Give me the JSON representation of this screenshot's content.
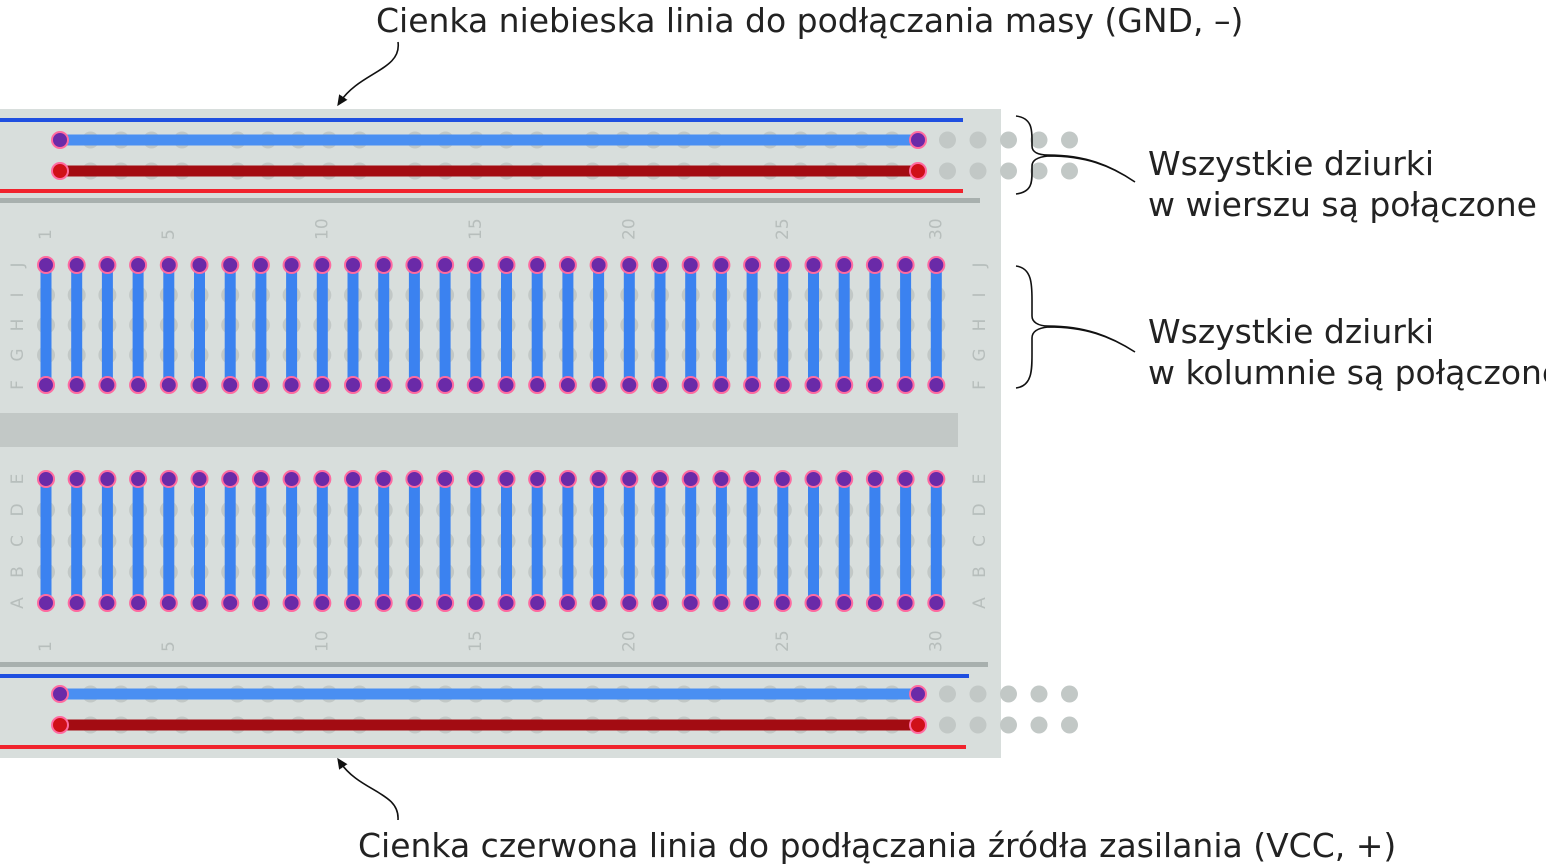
{
  "annotations": {
    "ground_line": "Cienka niebieska linia do podłączania masy (GND, –)",
    "power_line": "Cienka czerwona linia do podłączania źródła zasilania (VCC, +)",
    "row_connected": [
      "Wszystkie dziurki",
      "w wierszu są połączone"
    ],
    "column_connected": [
      "Wszystkie dziurki",
      "w kolumnie są połączone"
    ]
  },
  "breadboard": {
    "columns": 30,
    "column_number_labels": [
      "1",
      "5",
      "10",
      "15",
      "20",
      "25",
      "30"
    ],
    "upper_row_letters": [
      "J",
      "I",
      "H",
      "G",
      "F"
    ],
    "lower_row_letters": [
      "E",
      "D",
      "C",
      "B",
      "A"
    ]
  },
  "colors": {
    "board": "#d8dedc",
    "hole": "#c2c8c6",
    "blue_line": "#1f4fe0",
    "red_line": "#f0232d",
    "column_strip": "#3b82f0",
    "rail_dark_red": "#a30c12",
    "endpoint": "#6a2aa8",
    "label_gray": "#b7bebc"
  }
}
